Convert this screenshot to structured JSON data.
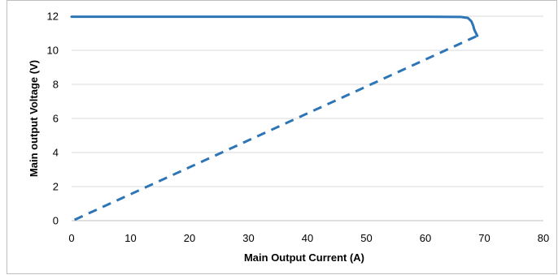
{
  "chart_data": {
    "type": "line",
    "xlabel": "Main  Output Current (A)",
    "ylabel": "Main output Voltage (V)",
    "xlim": [
      0,
      80
    ],
    "ylim": [
      0,
      12
    ],
    "x_ticks": [
      "0",
      "10",
      "20",
      "30",
      "40",
      "50",
      "60",
      "70",
      "80"
    ],
    "y_ticks": [
      "0",
      "2",
      "4",
      "6",
      "8",
      "10",
      "12"
    ],
    "grid": "horizontal",
    "legend": "none",
    "series": [
      {
        "style": "solid",
        "color": "#2e75b6",
        "x": [
          0,
          60,
          66,
          67.2,
          67.8,
          68.1,
          68.3,
          68.8
        ],
        "y": [
          11.97,
          11.97,
          11.96,
          11.9,
          11.7,
          11.45,
          11.2,
          10.85
        ]
      },
      {
        "style": "dashed",
        "color": "#2e75b6",
        "x": [
          0.5,
          68.8
        ],
        "y": [
          0.05,
          10.85
        ]
      }
    ]
  }
}
